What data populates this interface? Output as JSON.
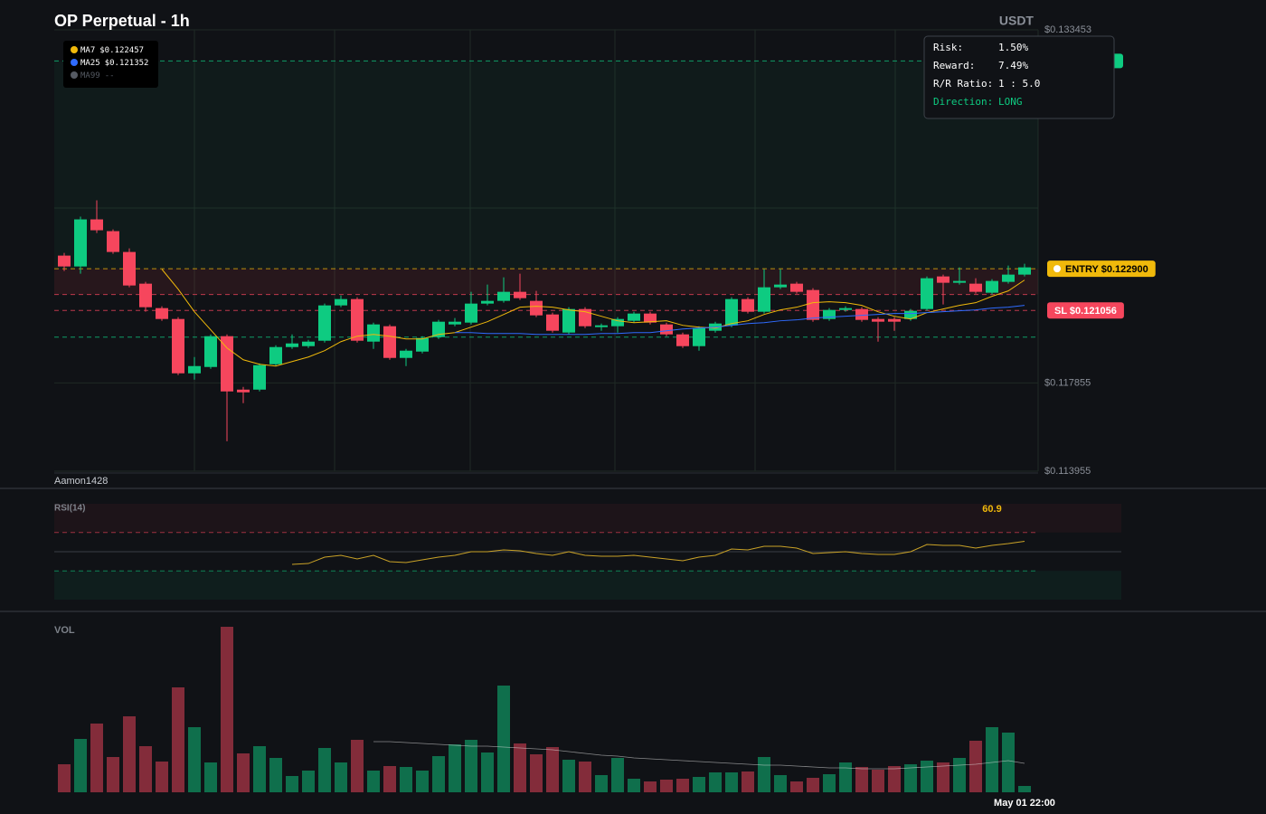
{
  "title": "OP Perpetual - 1h",
  "quote": "USDT",
  "watermark": "Aamon1428",
  "risk_panel": {
    "rows": [
      {
        "label": "Risk:",
        "value": "1.50%"
      },
      {
        "label": "Reward:",
        "value": "7.49%"
      },
      {
        "label": "R/R Ratio:",
        "value": "1 : 5.0"
      },
      {
        "label": "Direction:",
        "value": "LONG"
      }
    ]
  },
  "chart_data": [
    {
      "type": "candlestick",
      "up_color": "#0ecb81",
      "down_color": "#f6465d",
      "ylim": [
        0.113955,
        0.133453
      ],
      "yticks": [
        {
          "value": 0.133453,
          "label": "$0.133453"
        },
        {
          "value": 0.117855,
          "label": "$0.117855"
        },
        {
          "value": 0.113955,
          "label": "$0.113955"
        }
      ],
      "open": [
        0.12348,
        0.123,
        0.12508,
        0.12456,
        0.12364,
        0.12224,
        0.12116,
        0.12068,
        0.11828,
        0.11856,
        0.11992,
        0.11756,
        0.11756,
        0.11868,
        0.11944,
        0.11948,
        0.11972,
        0.12128,
        0.12156,
        0.11968,
        0.12036,
        0.11896,
        0.11924,
        0.11988,
        0.12044,
        0.12052,
        0.12136,
        0.12148,
        0.12188,
        0.12148,
        0.12088,
        0.12008,
        0.12112,
        0.12032,
        0.12036,
        0.1206,
        0.12092,
        0.12044,
        0.12,
        0.11948,
        0.12016,
        0.1204,
        0.12156,
        0.121,
        0.12208,
        0.12224,
        0.12196,
        0.12068,
        0.12108,
        0.12112,
        0.12068,
        0.12068,
        0.12068,
        0.12112,
        0.12256,
        0.12228,
        0.12224,
        0.12184,
        0.12232,
        0.12264
      ],
      "high": [
        0.1236,
        0.1252,
        0.12592,
        0.12464,
        0.1238,
        0.12232,
        0.12124,
        0.12076,
        0.119,
        0.12,
        0.12,
        0.11768,
        0.11872,
        0.11952,
        0.12,
        0.11976,
        0.12136,
        0.12172,
        0.12164,
        0.12052,
        0.12044,
        0.11936,
        0.11992,
        0.12064,
        0.12072,
        0.12188,
        0.1222,
        0.12252,
        0.12268,
        0.12192,
        0.12096,
        0.1212,
        0.1212,
        0.12048,
        0.12076,
        0.121,
        0.121,
        0.12052,
        0.12008,
        0.12036,
        0.12056,
        0.12164,
        0.12164,
        0.12288,
        0.12288,
        0.12232,
        0.12204,
        0.12116,
        0.12124,
        0.1212,
        0.12076,
        0.12076,
        0.12112,
        0.12256,
        0.12264,
        0.12296,
        0.12248,
        0.12244,
        0.12304,
        0.12312
      ],
      "low": [
        0.1228,
        0.12268,
        0.12448,
        0.12356,
        0.12208,
        0.121,
        0.1206,
        0.1182,
        0.118,
        0.11848,
        0.11528,
        0.11696,
        0.11748,
        0.1186,
        0.11936,
        0.1194,
        0.11964,
        0.1212,
        0.11964,
        0.11936,
        0.11888,
        0.1186,
        0.11916,
        0.1198,
        0.12036,
        0.12044,
        0.12128,
        0.1214,
        0.12152,
        0.12076,
        0.12008,
        0.12,
        0.12028,
        0.12016,
        0.12008,
        0.12052,
        0.12044,
        0.11992,
        0.1194,
        0.11928,
        0.12008,
        0.12032,
        0.12092,
        0.12092,
        0.122,
        0.1218,
        0.12056,
        0.1206,
        0.121,
        0.12056,
        0.11968,
        0.12016,
        0.1206,
        0.12104,
        0.12132,
        0.1222,
        0.1218,
        0.12176,
        0.12224,
        0.12256
      ],
      "close": [
        0.123,
        0.12508,
        0.1246,
        0.12364,
        0.12216,
        0.1212,
        0.12068,
        0.11828,
        0.1186,
        0.11992,
        0.11748,
        0.11744,
        0.11864,
        0.11944,
        0.1196,
        0.11968,
        0.12128,
        0.12156,
        0.11972,
        0.12044,
        0.11896,
        0.11928,
        0.11984,
        0.12056,
        0.12056,
        0.12136,
        0.12148,
        0.12188,
        0.1216,
        0.12084,
        0.12016,
        0.12112,
        0.12036,
        0.1204,
        0.12068,
        0.12092,
        0.12052,
        0.12,
        0.11948,
        0.12028,
        0.12048,
        0.12156,
        0.121,
        0.12208,
        0.1222,
        0.12188,
        0.12064,
        0.12108,
        0.12116,
        0.12064,
        0.12056,
        0.12056,
        0.12104,
        0.12248,
        0.12228,
        0.12236,
        0.12188,
        0.12236,
        0.12264,
        0.12296
      ],
      "series": [
        {
          "name": "MA7",
          "value_label": "$0.122457",
          "color": "#f0b90b",
          "values": [
            null,
            null,
            null,
            null,
            null,
            null,
            0.12288,
            0.122,
            0.121,
            0.1202,
            0.1194,
            0.11888,
            0.11868,
            0.1186,
            0.1188,
            0.119,
            0.11928,
            0.11968,
            0.11992,
            0.12,
            0.11992,
            0.1198,
            0.1198,
            0.12,
            0.12008,
            0.12032,
            0.12056,
            0.12088,
            0.1212,
            0.12124,
            0.1212,
            0.12108,
            0.121,
            0.1208,
            0.1206,
            0.12052,
            0.12056,
            0.1206,
            0.1204,
            0.12032,
            0.12028,
            0.12048,
            0.1206,
            0.12088,
            0.12108,
            0.1212,
            0.1214,
            0.12144,
            0.1214,
            0.12128,
            0.121,
            0.1208,
            0.12068,
            0.12096,
            0.12112,
            0.12128,
            0.1214,
            0.12168,
            0.12192,
            0.1224
          ]
        },
        {
          "name": "MA25",
          "value_label": "$0.121352",
          "color": "#2f6bff",
          "values": [
            null,
            null,
            null,
            null,
            null,
            null,
            null,
            null,
            null,
            null,
            null,
            null,
            null,
            null,
            null,
            null,
            null,
            null,
            null,
            null,
            null,
            null,
            null,
            null,
            0.12008,
            0.12008,
            0.12004,
            0.12004,
            0.12004,
            0.12,
            0.12,
            0.12,
            0.12,
            0.12004,
            0.12004,
            0.12008,
            0.12008,
            0.12016,
            0.12024,
            0.12028,
            0.12032,
            0.1204,
            0.12048,
            0.12052,
            0.1206,
            0.12064,
            0.12072,
            0.12076,
            0.1208,
            0.12084,
            0.12088,
            0.12092,
            0.12092,
            0.12096,
            0.121,
            0.12104,
            0.12108,
            0.12116,
            0.1212,
            0.12128
          ]
        },
        {
          "name": "MA99",
          "value_label": "--",
          "color": "#555a63",
          "values": []
        }
      ],
      "levels": [
        {
          "value": 0.1229,
          "label": "ENTRY $0.122900",
          "color": "#f0b90b"
        },
        {
          "value": 0.121056,
          "label": "SL $0.121056",
          "color": "#f6465d"
        },
        {
          "value": 0.12176,
          "color": "#f6465d"
        },
        {
          "value": 0.13208,
          "color": "#0ecb81"
        },
        {
          "value": 0.11988,
          "color": "#0ecb81"
        }
      ]
    },
    {
      "type": "line",
      "title": "RSI(14)",
      "color": "#c9a227",
      "ylim": [
        0,
        100
      ],
      "levels": [
        70,
        50,
        30
      ],
      "values": [
        null,
        null,
        null,
        null,
        null,
        null,
        null,
        null,
        null,
        null,
        null,
        null,
        null,
        null,
        36.8,
        37.7,
        44.3,
        46.2,
        42.5,
        46.2,
        39.6,
        38.7,
        41.5,
        44.3,
        46.2,
        50,
        50,
        51.9,
        50.9,
        48.1,
        46.2,
        50,
        46.2,
        45.3,
        45.3,
        46.2,
        44.3,
        42.5,
        40.6,
        44.3,
        46.2,
        52.8,
        51.9,
        55.7,
        55.7,
        53.8,
        48.1,
        49.1,
        50,
        48.1,
        47.2,
        47.2,
        50,
        57.5,
        56.6,
        56.6,
        53.8,
        56.6,
        58.5,
        60.9
      ]
    },
    {
      "type": "bar",
      "title": "VOL",
      "ylim": [
        0,
        186
      ],
      "categories": [
        null,
        null,
        null,
        null,
        null,
        null,
        null,
        null,
        null,
        null,
        null,
        null,
        null,
        null,
        null,
        null,
        null,
        null,
        null,
        null,
        null,
        null,
        null,
        null,
        null,
        null,
        null,
        null,
        null,
        null,
        null,
        null,
        null,
        null,
        null,
        null,
        null,
        null,
        null,
        null,
        null,
        null,
        null,
        null,
        null,
        null,
        null,
        null,
        null,
        null,
        null,
        null,
        null,
        null,
        null,
        null,
        null,
        null,
        null,
        "May 01 22:00"
      ],
      "values": [
        31,
        59,
        76,
        39,
        84,
        51,
        34,
        116,
        72,
        33,
        183,
        43,
        51,
        38,
        18,
        24,
        49,
        33,
        58,
        24,
        29,
        28,
        24,
        40,
        53,
        58,
        44,
        118,
        54,
        42,
        50,
        36,
        34,
        19,
        38,
        15,
        12,
        14,
        15,
        17,
        22,
        22,
        23,
        39,
        19,
        12,
        16,
        20,
        33,
        28,
        25,
        29,
        31,
        35,
        33,
        38,
        57,
        72,
        66,
        7
      ],
      "ma_color": "#d9d9d9",
      "ma": [
        null,
        null,
        null,
        null,
        null,
        null,
        null,
        null,
        null,
        null,
        null,
        null,
        null,
        null,
        null,
        null,
        null,
        null,
        null,
        56,
        56,
        55,
        54,
        53,
        52,
        51,
        51,
        50,
        49,
        48,
        47,
        45,
        43,
        41,
        40,
        38,
        37,
        36,
        35,
        34,
        33,
        32,
        31,
        30,
        30,
        29,
        28,
        27,
        27,
        26,
        26,
        26,
        27,
        28,
        29,
        30,
        31,
        33,
        35,
        32
      ]
    }
  ]
}
